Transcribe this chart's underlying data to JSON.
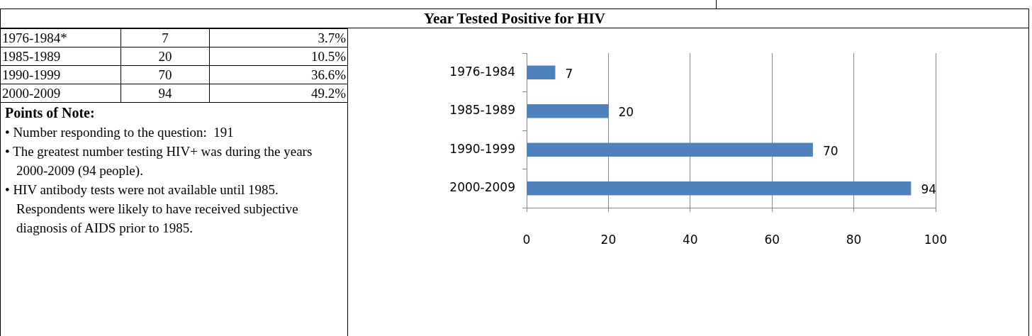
{
  "chart_data": {
    "type": "bar",
    "orientation": "horizontal",
    "title": "Year Tested Positive for HIV",
    "categories": [
      "1976-1984",
      "1985-1989",
      "1990-1999",
      "2000-2009"
    ],
    "values": [
      7,
      20,
      70,
      94
    ],
    "color": "#4f81bd",
    "data_labels": true,
    "xlim": [
      0,
      100
    ],
    "xticks": [
      0,
      20,
      40,
      60,
      80,
      100
    ],
    "grid": "x",
    "annotations": [
      "1976-1984*",
      "7",
      "3.7%",
      "1985-1989",
      "20",
      "10.5%",
      "1990-1999",
      "70",
      "36.6%",
      "2000-2009",
      "94",
      "49.2%",
      "Points of Note:",
      "• Number responding to the question:  191",
      "• The greatest number testing HIV+ was during the years 2000-2009 (94 people).",
      "• HIV antibody tests were not available until 1985. Respondents were likely to have received subjective diagnosis of AIDS prior to 1985."
    ]
  }
}
